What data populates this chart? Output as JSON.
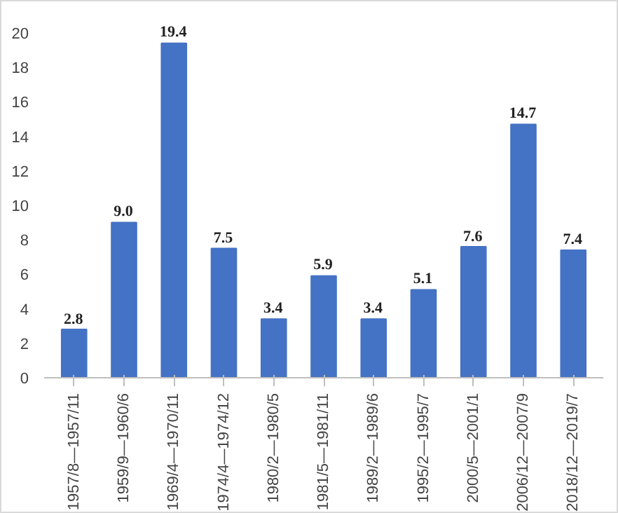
{
  "chart_data": {
    "type": "bar",
    "categories": [
      "1957/8—1957/11",
      "1959/9—1960/6",
      "1969/4—1970/11",
      "1974/4—1974/12",
      "1980/2—1980/5",
      "1981/5—1981/11",
      "1989/2—1989/6",
      "1995/2—1995/7",
      "2000/5—2001/1",
      "2006/12—2007/9",
      "2018/12—2019/7"
    ],
    "values": [
      2.8,
      9.0,
      19.4,
      7.5,
      3.4,
      5.9,
      3.4,
      5.1,
      7.6,
      14.7,
      7.4
    ],
    "color": "#4472c4",
    "ylim": [
      0,
      20
    ],
    "yticks": [
      0,
      2,
      4,
      6,
      8,
      10,
      12,
      14,
      16,
      18,
      20
    ],
    "value_labels": [
      "2.8",
      "9.0",
      "19.4",
      "7.5",
      "3.4",
      "5.9",
      "3.4",
      "5.1",
      "7.6",
      "14.7",
      "7.4"
    ],
    "grid": false
  }
}
